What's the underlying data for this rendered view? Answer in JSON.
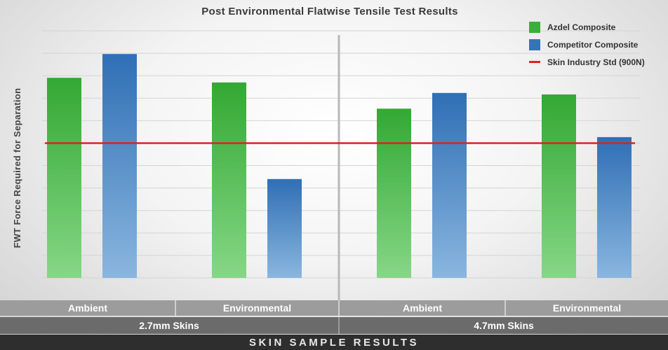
{
  "chart_data": {
    "type": "bar",
    "title": "Post Environmental Flatwise Tensile Test Results",
    "ylabel": "FWT Force Required for Separation",
    "xlabel": "SKIN SAMPLE RESULTS",
    "categories": [
      "Ambient",
      "Environmental",
      "Ambient",
      "Environmental"
    ],
    "groups": [
      {
        "label": "2.7mm Skins",
        "categories": [
          "Ambient",
          "Environmental"
        ]
      },
      {
        "label": "4.7mm Skins",
        "categories": [
          "Ambient",
          "Environmental"
        ]
      }
    ],
    "series": [
      {
        "name": "Azdel Composite",
        "color": "#3cae3c",
        "values": [
          1336,
          1305,
          1130,
          1225
        ]
      },
      {
        "name": "Competitor Composite",
        "color": "#3574b9",
        "values": [
          1495,
          660,
          1235,
          940
        ]
      }
    ],
    "reference_line": {
      "name": "Skin Industry Std (900N)",
      "value": 900,
      "color": "#e02020"
    },
    "ylim": [
      0,
      1650
    ],
    "y_tick_labels_shown": false,
    "grid": true,
    "legend_position": "top-right"
  }
}
